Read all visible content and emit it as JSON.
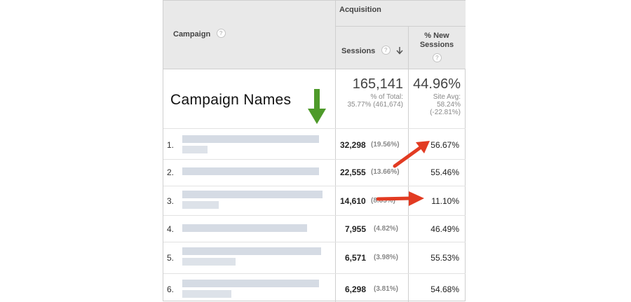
{
  "header": {
    "campaign_label": "Campaign",
    "acquisition_label": "Acquisition",
    "sessions_label": "Sessions",
    "new_sessions_label": "% New\nSessions",
    "help_glyph": "?",
    "sort_icon": "arrow-down-icon"
  },
  "totals": {
    "sessions": "165,141",
    "sessions_sub1": "% of Total:",
    "sessions_sub2": "35.77% (461,674)",
    "new_sessions": "44.96%",
    "new_sub1": "Site Avg:",
    "new_sub2": "58.24%",
    "new_sub3": "(-22.81%)"
  },
  "annotation": {
    "campaign_names_text": "Campaign Names",
    "arrow_color": "#4e9a2a",
    "red_arrow_color": "#e23b22"
  },
  "rows": [
    {
      "num": "1.",
      "sessions": "32,298",
      "pct": "(19.56%)",
      "new_pct": "56.67%"
    },
    {
      "num": "2.",
      "sessions": "22,555",
      "pct": "(13.66%)",
      "new_pct": "55.46%"
    },
    {
      "num": "3.",
      "sessions": "14,610",
      "pct": "(8.85%)",
      "new_pct": "11.10%"
    },
    {
      "num": "4.",
      "sessions": "7,955",
      "pct": "(4.82%)",
      "new_pct": "46.49%"
    },
    {
      "num": "5.",
      "sessions": "6,571",
      "pct": "(3.98%)",
      "new_pct": "55.53%"
    },
    {
      "num": "6.",
      "sessions": "6,298",
      "pct": "(3.81%)",
      "new_pct": "54.68%"
    }
  ]
}
